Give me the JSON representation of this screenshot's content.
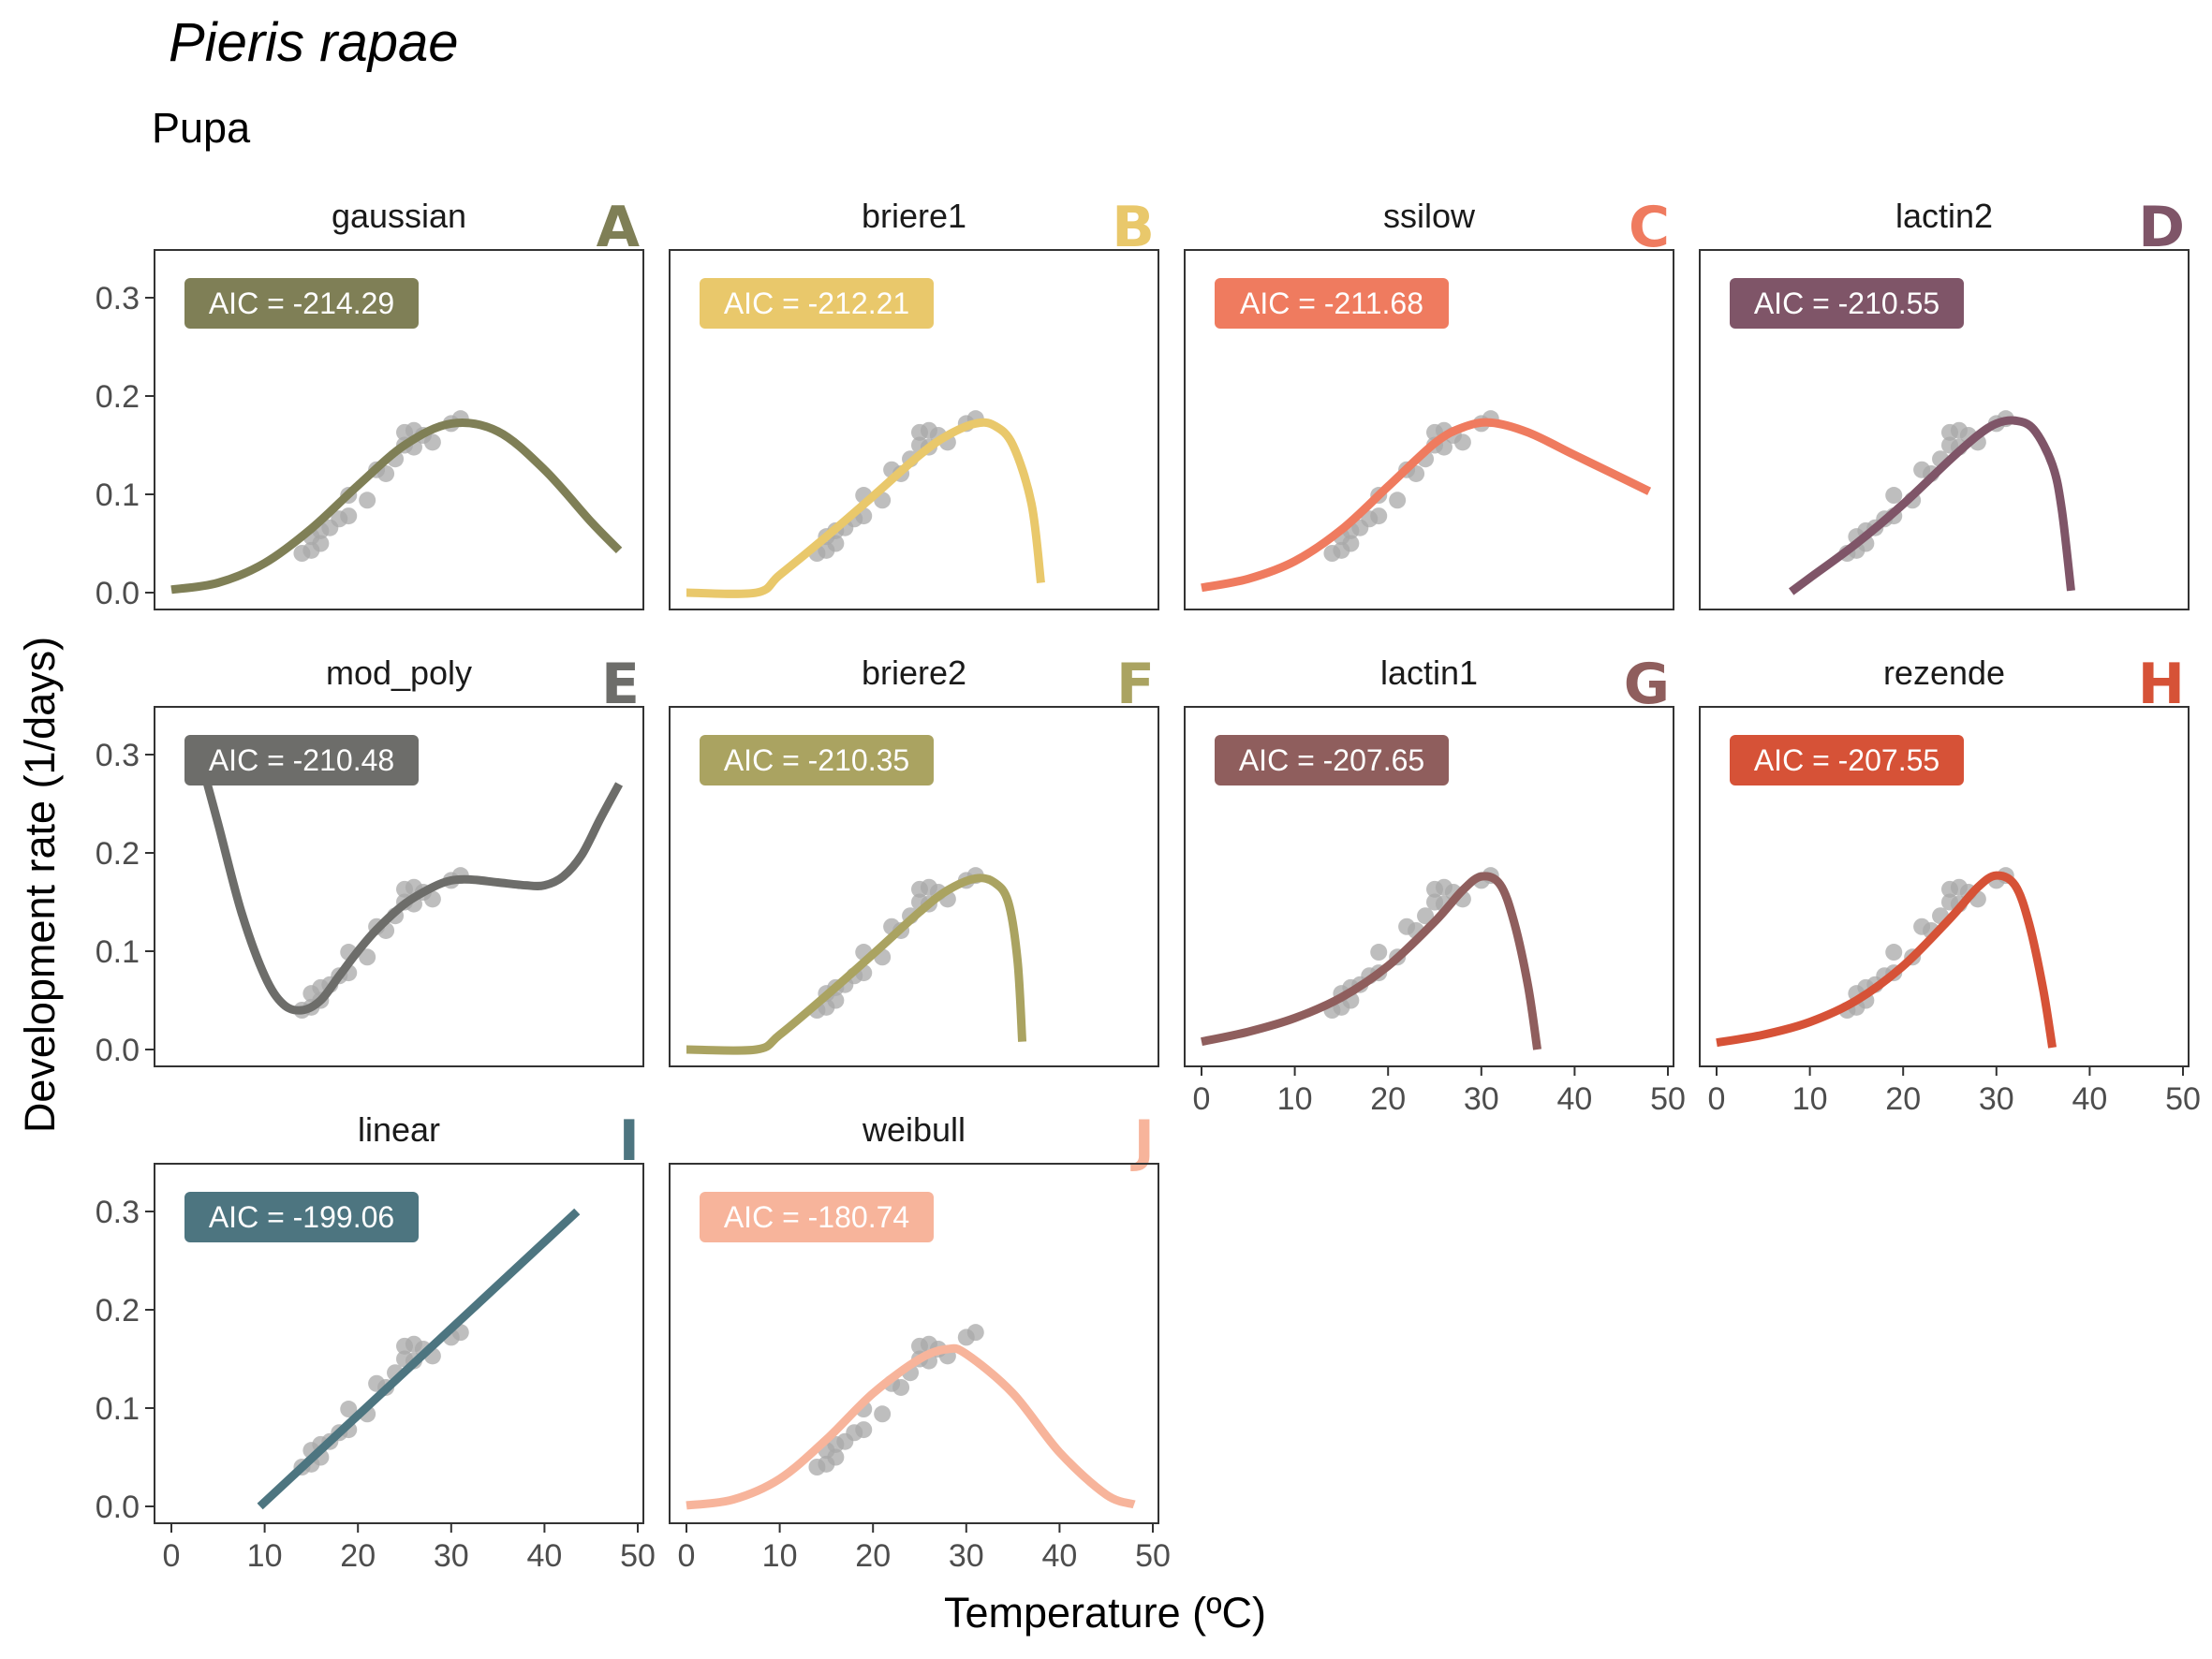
{
  "title": "Pieris rapae",
  "subtitle": "Pupa",
  "chart_data": {
    "type": "scatter",
    "xlabel": "Temperature (ºC)",
    "ylabel": "Development rate (1/days)",
    "xlim": [
      0,
      50
    ],
    "ylim": [
      0,
      0.3
    ],
    "x_ticks": [
      "0",
      "10",
      "20",
      "30",
      "40",
      "50"
    ],
    "y_ticks": [
      "0.0",
      "0.1",
      "0.2",
      "0.3"
    ],
    "points": [
      {
        "x": 14,
        "y": 0.04
      },
      {
        "x": 15,
        "y": 0.043
      },
      {
        "x": 15,
        "y": 0.057
      },
      {
        "x": 16,
        "y": 0.05
      },
      {
        "x": 16,
        "y": 0.063
      },
      {
        "x": 17,
        "y": 0.066
      },
      {
        "x": 18,
        "y": 0.075
      },
      {
        "x": 19,
        "y": 0.078
      },
      {
        "x": 19,
        "y": 0.099
      },
      {
        "x": 21,
        "y": 0.094
      },
      {
        "x": 22,
        "y": 0.125
      },
      {
        "x": 23,
        "y": 0.121
      },
      {
        "x": 24,
        "y": 0.136
      },
      {
        "x": 25,
        "y": 0.15
      },
      {
        "x": 25,
        "y": 0.163
      },
      {
        "x": 26,
        "y": 0.148
      },
      {
        "x": 26,
        "y": 0.165
      },
      {
        "x": 27,
        "y": 0.16
      },
      {
        "x": 28,
        "y": 0.153
      },
      {
        "x": 30,
        "y": 0.172
      },
      {
        "x": 31,
        "y": 0.177
      }
    ],
    "panels": [
      {
        "model": "gaussian",
        "letter": "A",
        "aic": "AIC = -214.29",
        "color": "#7f7f56",
        "curve": [
          [
            0,
            0.003
          ],
          [
            5,
            0.01
          ],
          [
            10,
            0.03
          ],
          [
            15,
            0.065
          ],
          [
            20,
            0.109
          ],
          [
            25,
            0.15
          ],
          [
            30,
            0.172
          ],
          [
            35,
            0.164
          ],
          [
            40,
            0.125
          ],
          [
            45,
            0.072
          ],
          [
            48,
            0.043
          ]
        ]
      },
      {
        "model": "briere1",
        "letter": "B",
        "aic": "AIC = -212.21",
        "color": "#e9c86b",
        "curve": [
          [
            0,
            0.0
          ],
          [
            7.5,
            0.0
          ],
          [
            10,
            0.018
          ],
          [
            15,
            0.057
          ],
          [
            20,
            0.098
          ],
          [
            25,
            0.14
          ],
          [
            28,
            0.16
          ],
          [
            31,
            0.172
          ],
          [
            33,
            0.17
          ],
          [
            35,
            0.15
          ],
          [
            37,
            0.09
          ],
          [
            38,
            0.01
          ]
        ]
      },
      {
        "model": "ssilow",
        "letter": "C",
        "aic": "AIC = -211.68",
        "color": "#ef7b5f",
        "curve": [
          [
            0,
            0.005
          ],
          [
            5,
            0.014
          ],
          [
            10,
            0.032
          ],
          [
            15,
            0.064
          ],
          [
            20,
            0.108
          ],
          [
            25,
            0.152
          ],
          [
            28,
            0.168
          ],
          [
            31,
            0.173
          ],
          [
            35,
            0.163
          ],
          [
            40,
            0.14
          ],
          [
            45,
            0.117
          ],
          [
            48,
            0.103
          ]
        ]
      },
      {
        "model": "lactin2",
        "letter": "D",
        "aic": "AIC = -210.55",
        "color": "#7f5568",
        "curve": [
          [
            8,
            0.001
          ],
          [
            10,
            0.015
          ],
          [
            15,
            0.05
          ],
          [
            20,
            0.09
          ],
          [
            25,
            0.135
          ],
          [
            28,
            0.16
          ],
          [
            30,
            0.172
          ],
          [
            32,
            0.175
          ],
          [
            34,
            0.166
          ],
          [
            36,
            0.13
          ],
          [
            37,
            0.085
          ],
          [
            38,
            0.002
          ]
        ]
      },
      {
        "model": "mod_poly",
        "letter": "E",
        "aic": "AIC = -210.48",
        "color": "#6d6d6a",
        "curve": [
          [
            3,
            0.3
          ],
          [
            5,
            0.23
          ],
          [
            7.5,
            0.14
          ],
          [
            10,
            0.075
          ],
          [
            12,
            0.046
          ],
          [
            14,
            0.04
          ],
          [
            16,
            0.05
          ],
          [
            18,
            0.075
          ],
          [
            20,
            0.1
          ],
          [
            22,
            0.122
          ],
          [
            25,
            0.148
          ],
          [
            28,
            0.165
          ],
          [
            30,
            0.172
          ],
          [
            32,
            0.173
          ],
          [
            35,
            0.17
          ],
          [
            38,
            0.167
          ],
          [
            40,
            0.167
          ],
          [
            42,
            0.176
          ],
          [
            44,
            0.198
          ],
          [
            46,
            0.235
          ],
          [
            48,
            0.27
          ]
        ]
      },
      {
        "model": "briere2",
        "letter": "F",
        "aic": "AIC = -210.35",
        "color": "#aaa361",
        "curve": [
          [
            0,
            0.0
          ],
          [
            7.5,
            0.0
          ],
          [
            10,
            0.015
          ],
          [
            15,
            0.055
          ],
          [
            20,
            0.097
          ],
          [
            25,
            0.14
          ],
          [
            28,
            0.162
          ],
          [
            31,
            0.174
          ],
          [
            33,
            0.17
          ],
          [
            34.5,
            0.15
          ],
          [
            35.5,
            0.09
          ],
          [
            36,
            0.008
          ]
        ]
      },
      {
        "model": "lactin1",
        "letter": "G",
        "aic": "AIC = -207.65",
        "color": "#8f5e5d",
        "curve": [
          [
            0,
            0.008
          ],
          [
            5,
            0.018
          ],
          [
            10,
            0.032
          ],
          [
            15,
            0.053
          ],
          [
            20,
            0.085
          ],
          [
            25,
            0.13
          ],
          [
            28,
            0.162
          ],
          [
            30,
            0.176
          ],
          [
            32,
            0.168
          ],
          [
            33.5,
            0.13
          ],
          [
            35,
            0.065
          ],
          [
            36,
            0.0
          ]
        ]
      },
      {
        "model": "rezende",
        "letter": "H",
        "aic": "AIC = -207.55",
        "color": "#d65237",
        "curve": [
          [
            0,
            0.007
          ],
          [
            5,
            0.015
          ],
          [
            10,
            0.028
          ],
          [
            15,
            0.05
          ],
          [
            20,
            0.085
          ],
          [
            25,
            0.133
          ],
          [
            28,
            0.165
          ],
          [
            30,
            0.177
          ],
          [
            32,
            0.167
          ],
          [
            33.5,
            0.128
          ],
          [
            35,
            0.062
          ],
          [
            36,
            0.002
          ]
        ]
      },
      {
        "model": "linear",
        "letter": "I",
        "aic": "AIC = -199.06",
        "color": "#4d7580",
        "curve": [
          [
            9.5,
            0.0
          ],
          [
            43.5,
            0.3
          ]
        ]
      },
      {
        "model": "weibull",
        "letter": "J",
        "aic": "AIC = -180.74",
        "color": "#f7b49b",
        "curve": [
          [
            0,
            0.001
          ],
          [
            5,
            0.007
          ],
          [
            10,
            0.028
          ],
          [
            15,
            0.068
          ],
          [
            20,
            0.115
          ],
          [
            25,
            0.15
          ],
          [
            28,
            0.16
          ],
          [
            30,
            0.155
          ],
          [
            35,
            0.115
          ],
          [
            40,
            0.055
          ],
          [
            45,
            0.012
          ],
          [
            48,
            0.002
          ]
        ]
      }
    ]
  }
}
